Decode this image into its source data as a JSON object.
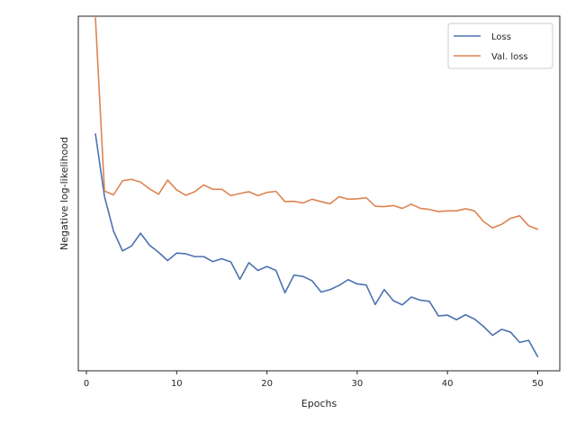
{
  "chart_data": {
    "type": "line",
    "title": "",
    "xlabel": "Epochs",
    "ylabel": "Negative log-likelihood",
    "xlim": [
      -0.9,
      52.45
    ],
    "ylim": [
      0.0,
      1.0
    ],
    "xticks": [
      0,
      10,
      20,
      30,
      40,
      50
    ],
    "yticks_shown": false,
    "grid": false,
    "legend": {
      "location": "upper right"
    },
    "x": [
      1,
      2,
      3,
      4,
      5,
      6,
      7,
      8,
      9,
      10,
      11,
      12,
      13,
      14,
      15,
      16,
      17,
      18,
      19,
      20,
      21,
      22,
      23,
      24,
      25,
      26,
      27,
      28,
      29,
      30,
      31,
      32,
      33,
      34,
      35,
      36,
      37,
      38,
      39,
      40,
      41,
      42,
      43,
      44,
      45,
      46,
      47,
      48,
      49,
      50
    ],
    "series": [
      {
        "name": "Loss",
        "color": "#4c72b0",
        "values": [
          0.668,
          0.492,
          0.394,
          0.338,
          0.352,
          0.388,
          0.354,
          0.334,
          0.311,
          0.332,
          0.33,
          0.322,
          0.322,
          0.308,
          0.316,
          0.307,
          0.258,
          0.305,
          0.283,
          0.294,
          0.283,
          0.22,
          0.27,
          0.266,
          0.254,
          0.222,
          0.229,
          0.241,
          0.257,
          0.245,
          0.242,
          0.187,
          0.229,
          0.198,
          0.186,
          0.208,
          0.199,
          0.196,
          0.155,
          0.157,
          0.144,
          0.158,
          0.146,
          0.125,
          0.1,
          0.117,
          0.109,
          0.08,
          0.086,
          0.04
        ]
      },
      {
        "name": "Val. loss",
        "color": "#dd8452",
        "values": [
          0.995,
          0.507,
          0.496,
          0.536,
          0.54,
          0.532,
          0.513,
          0.498,
          0.538,
          0.51,
          0.495,
          0.505,
          0.524,
          0.512,
          0.512,
          0.494,
          0.5,
          0.505,
          0.494,
          0.503,
          0.506,
          0.477,
          0.478,
          0.473,
          0.484,
          0.477,
          0.471,
          0.491,
          0.484,
          0.485,
          0.488,
          0.464,
          0.463,
          0.466,
          0.458,
          0.47,
          0.458,
          0.455,
          0.449,
          0.451,
          0.451,
          0.457,
          0.451,
          0.421,
          0.403,
          0.413,
          0.43,
          0.437,
          0.409,
          0.399
        ]
      }
    ]
  }
}
